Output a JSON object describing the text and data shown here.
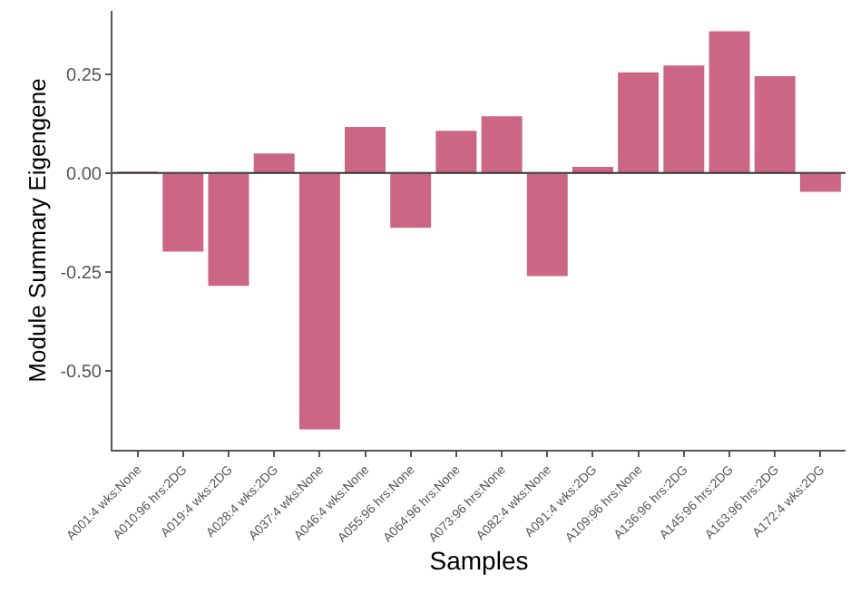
{
  "chart_data": {
    "type": "bar",
    "xlabel": "Samples",
    "ylabel": "Module Summary Eigengene",
    "categories": [
      "A001:4 wks:None",
      "A010:96 hrs:2DG",
      "A019:4 wks:2DG",
      "A028:4 wks:2DG",
      "A037:4 wks:None",
      "A046:4 wks:None",
      "A055:96 hrs:None",
      "A064:96 hrs:None",
      "A073:96 hrs:None",
      "A082:4 wks:None",
      "A091:4 wks:2DG",
      "A109:96 hrs:None",
      "A136:96 hrs:2DG",
      "A145:96 hrs:2DG",
      "A163:96 hrs:2DG",
      "A172:4 wks:2DG"
    ],
    "values": [
      0.005,
      -0.2,
      -0.287,
      0.051,
      -0.65,
      0.118,
      -0.14,
      0.108,
      0.145,
      -0.262,
      0.017,
      0.256,
      0.273,
      0.36,
      0.246,
      -0.049
    ],
    "color": "#cc6685",
    "ylim": [
      -0.7,
      0.41
    ],
    "yticks": [
      {
        "value": -0.5,
        "label": "-0.50"
      },
      {
        "value": -0.25,
        "label": "-0.25"
      },
      {
        "value": 0,
        "label": "0.00"
      },
      {
        "value": 0.25,
        "label": "0.25"
      }
    ],
    "ref_lines": [
      {
        "axis": "y",
        "value": 0,
        "color": "#333333"
      }
    ],
    "legend": false
  }
}
